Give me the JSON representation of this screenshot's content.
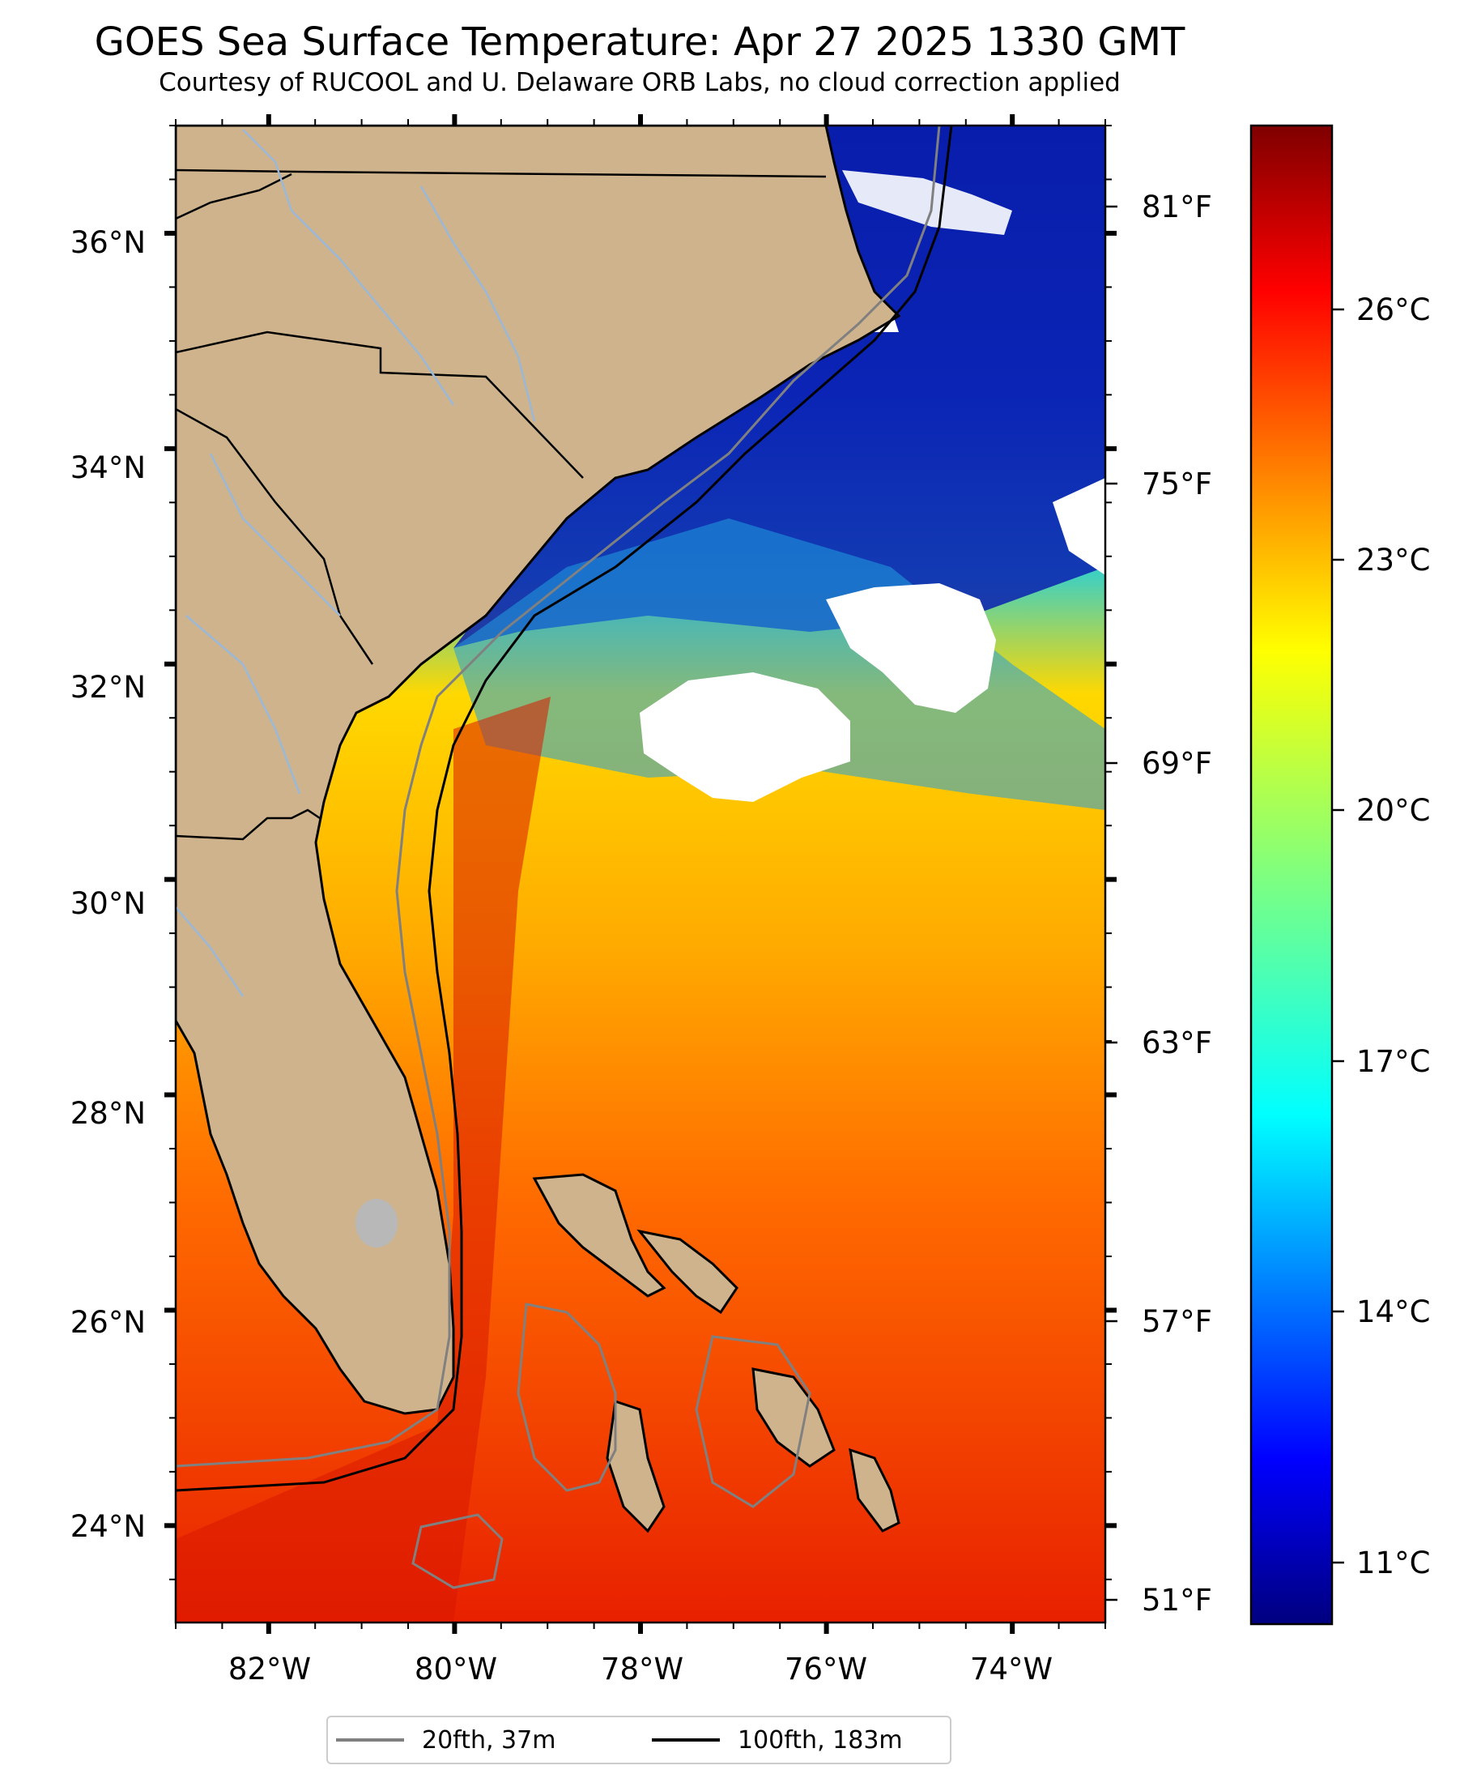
{
  "header": {
    "title": "GOES Sea Surface Temperature: Apr 27 2025 1330 GMT",
    "subtitle": "Courtesy of RUCOOL and U. Delaware ORB Labs, no cloud correction applied"
  },
  "map": {
    "lon_range": [
      -83,
      -73
    ],
    "lat_range": [
      23.1,
      37.0
    ],
    "lon_ticks": [
      "82°W",
      "80°W",
      "78°W",
      "76°W",
      "74°W"
    ],
    "lat_ticks": [
      "36°N",
      "34°N",
      "32°N",
      "30°N",
      "28°N",
      "26°N",
      "24°N"
    ],
    "colors": {
      "land": "#cfb38c",
      "cloud_mask": "#ffffff",
      "isobath_20fth": "#808080",
      "isobath_100fth": "#000000",
      "state_border": "#000000",
      "river": "#9ab8d8"
    }
  },
  "colorbar": {
    "colormap": "jet",
    "celsius_ticks": [
      "26°C",
      "23°C",
      "20°C",
      "17°C",
      "14°C",
      "11°C"
    ],
    "fahrenheit_ticks": [
      "81°F",
      "75°F",
      "69°F",
      "63°F",
      "57°F",
      "51°F"
    ]
  },
  "legend": {
    "items": [
      {
        "label": "20fth, 37m",
        "color": "#808080"
      },
      {
        "label": "100fth, 183m",
        "color": "#000000"
      }
    ]
  }
}
